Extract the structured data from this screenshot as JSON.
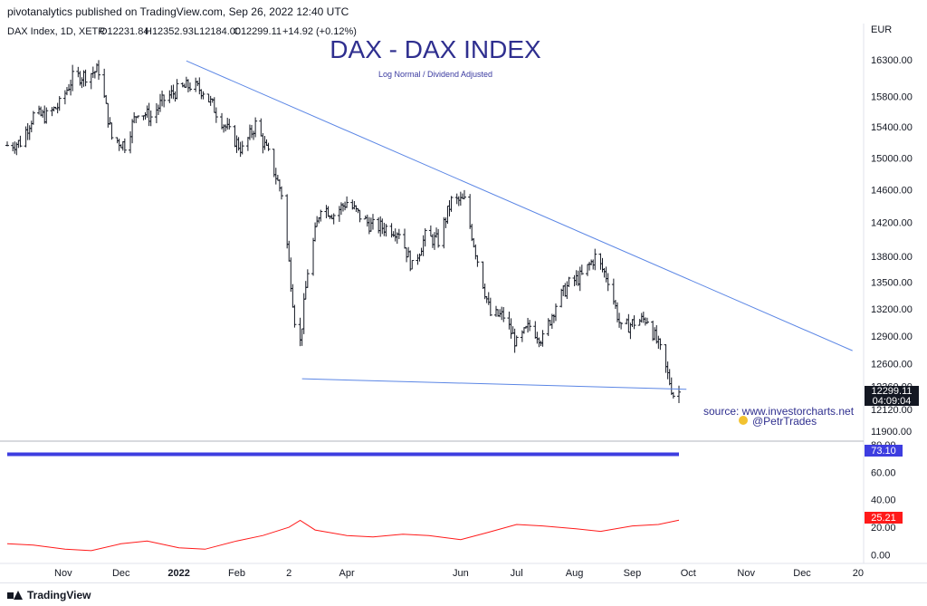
{
  "header": {
    "published": "pivotanalytics published on TradingView.com, Sep 26, 2022 12:40 UTC"
  },
  "footer": {
    "brand": "TradingView"
  },
  "chart_data": {
    "type": "ohlc",
    "title": "DAX - DAX INDEX",
    "subtitle": "Log Normal / Dividend Adjusted",
    "legend": {
      "symbol": "DAX Index, 1D, XETR",
      "open": "O12231.84",
      "high": "H12352.93",
      "low": "L12184.00",
      "close": "C12299.11",
      "change": "+14.92 (+0.12%)"
    },
    "currency": "EUR",
    "y_ticks": [
      "16300.00",
      "15800.00",
      "15400.00",
      "15000.00",
      "14600.00",
      "14200.00",
      "13800.00",
      "13500.00",
      "13200.00",
      "12900.00",
      "12600.00",
      "12360.00",
      "12120.00",
      "11900.00"
    ],
    "ylim": [
      11870,
      16700
    ],
    "last_price": "12299.11",
    "countdown": "04:09:04",
    "x_ticks": [
      "Nov",
      "Dec",
      "2022",
      "Feb",
      "2",
      "Apr",
      "Jun",
      "Jul",
      "Aug",
      "Sep",
      "Oct",
      "Nov",
      "Dec",
      "20"
    ],
    "x_tick_bold": [
      "2022"
    ],
    "date_range": [
      "2021-10-01",
      "2022-09-26"
    ],
    "trendlines": [
      {
        "from": [
          "2022-01-05",
          16285
        ],
        "to": [
          "2022-12-28",
          12740
        ]
      },
      {
        "from": [
          "2022-03-08",
          12440
        ],
        "to": [
          "2022-09-30",
          12330
        ]
      }
    ],
    "ohlc_approx": [
      {
        "date": "2021-10-01",
        "close": 15160
      },
      {
        "date": "2021-10-08",
        "close": 15200
      },
      {
        "date": "2021-10-15",
        "close": 15550
      },
      {
        "date": "2021-10-22",
        "close": 15540
      },
      {
        "date": "2021-10-29",
        "close": 15690
      },
      {
        "date": "2021-11-05",
        "close": 16050
      },
      {
        "date": "2021-11-12",
        "close": 16090
      },
      {
        "date": "2021-11-19",
        "close": 16160
      },
      {
        "date": "2021-11-26",
        "close": 15260
      },
      {
        "date": "2021-12-03",
        "close": 15170
      },
      {
        "date": "2021-12-10",
        "close": 15620
      },
      {
        "date": "2021-12-17",
        "close": 15530
      },
      {
        "date": "2021-12-24",
        "close": 15760
      },
      {
        "date": "2021-12-31",
        "close": 15880
      },
      {
        "date": "2022-01-07",
        "close": 15950
      },
      {
        "date": "2022-01-14",
        "close": 15880
      },
      {
        "date": "2022-01-21",
        "close": 15600
      },
      {
        "date": "2022-01-28",
        "close": 15320
      },
      {
        "date": "2022-02-04",
        "close": 15100
      },
      {
        "date": "2022-02-11",
        "close": 15430
      },
      {
        "date": "2022-02-18",
        "close": 15040
      },
      {
        "date": "2022-02-25",
        "close": 14560
      },
      {
        "date": "2022-03-04",
        "close": 13090
      },
      {
        "date": "2022-03-07",
        "close": 12830
      },
      {
        "date": "2022-03-11",
        "close": 13630
      },
      {
        "date": "2022-03-18",
        "close": 14410
      },
      {
        "date": "2022-03-25",
        "close": 14300
      },
      {
        "date": "2022-04-01",
        "close": 14450
      },
      {
        "date": "2022-04-08",
        "close": 14280
      },
      {
        "date": "2022-04-14",
        "close": 14160
      },
      {
        "date": "2022-04-22",
        "close": 14140
      },
      {
        "date": "2022-04-29",
        "close": 14100
      },
      {
        "date": "2022-05-06",
        "close": 13670
      },
      {
        "date": "2022-05-13",
        "close": 14030
      },
      {
        "date": "2022-05-20",
        "close": 13980
      },
      {
        "date": "2022-05-27",
        "close": 14460
      },
      {
        "date": "2022-06-03",
        "close": 14460
      },
      {
        "date": "2022-06-10",
        "close": 13760
      },
      {
        "date": "2022-06-17",
        "close": 13130
      },
      {
        "date": "2022-06-24",
        "close": 13120
      },
      {
        "date": "2022-07-01",
        "close": 12810
      },
      {
        "date": "2022-07-08",
        "close": 13010
      },
      {
        "date": "2022-07-15",
        "close": 12860
      },
      {
        "date": "2022-07-22",
        "close": 13250
      },
      {
        "date": "2022-07-29",
        "close": 13480
      },
      {
        "date": "2022-08-05",
        "close": 13570
      },
      {
        "date": "2022-08-12",
        "close": 13790
      },
      {
        "date": "2022-08-19",
        "close": 13540
      },
      {
        "date": "2022-08-26",
        "close": 12970
      },
      {
        "date": "2022-09-02",
        "close": 13050
      },
      {
        "date": "2022-09-09",
        "close": 13090
      },
      {
        "date": "2022-09-16",
        "close": 12740
      },
      {
        "date": "2022-09-23",
        "close": 12280
      },
      {
        "date": "2022-09-26",
        "close": 12299
      }
    ],
    "indicator": {
      "y_ticks": [
        "80.00",
        "60.00",
        "40.00",
        "20.00",
        "0.00"
      ],
      "ylim": [
        -5,
        82
      ],
      "upper_value": "73.10",
      "upper_color": "#3d3de0",
      "lower_value": "25.21",
      "lower_color": "#ff1a1a",
      "lower_series": [
        {
          "date": "2021-10-01",
          "value": 8
        },
        {
          "date": "2021-10-15",
          "value": 7
        },
        {
          "date": "2021-11-01",
          "value": 4
        },
        {
          "date": "2021-11-15",
          "value": 3
        },
        {
          "date": "2021-12-01",
          "value": 8
        },
        {
          "date": "2021-12-15",
          "value": 10
        },
        {
          "date": "2022-01-01",
          "value": 5
        },
        {
          "date": "2022-01-15",
          "value": 4
        },
        {
          "date": "2022-02-01",
          "value": 10
        },
        {
          "date": "2022-02-15",
          "value": 14
        },
        {
          "date": "2022-03-01",
          "value": 20
        },
        {
          "date": "2022-03-07",
          "value": 25
        },
        {
          "date": "2022-03-15",
          "value": 18
        },
        {
          "date": "2022-04-01",
          "value": 14
        },
        {
          "date": "2022-04-15",
          "value": 13
        },
        {
          "date": "2022-05-01",
          "value": 15
        },
        {
          "date": "2022-05-15",
          "value": 14
        },
        {
          "date": "2022-06-01",
          "value": 11
        },
        {
          "date": "2022-06-15",
          "value": 16
        },
        {
          "date": "2022-07-01",
          "value": 22
        },
        {
          "date": "2022-07-15",
          "value": 21
        },
        {
          "date": "2022-08-01",
          "value": 19
        },
        {
          "date": "2022-08-15",
          "value": 17
        },
        {
          "date": "2022-09-01",
          "value": 21
        },
        {
          "date": "2022-09-15",
          "value": 22
        },
        {
          "date": "2022-09-26",
          "value": 25.2
        }
      ]
    },
    "source_text": "source: www.investorcharts.net",
    "handle": "@PetrTrades",
    "colors": {
      "bars": "#131722",
      "trendline": "#5b86e5",
      "axis": "#e0e3eb"
    }
  }
}
